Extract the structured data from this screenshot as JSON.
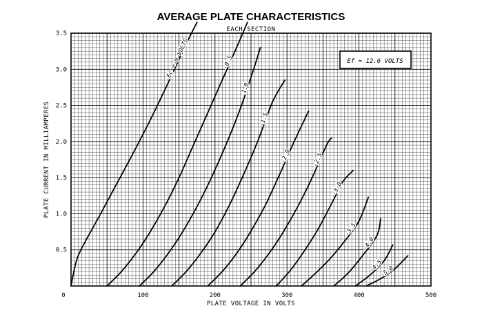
{
  "chart_data": {
    "type": "line",
    "title": "AVERAGE PLATE CHARACTERISTICS",
    "subtitle": "EACH SECTION",
    "xlabel": "PLATE VOLTAGE IN VOLTS",
    "ylabel": "PLATE CURRENT IN MILLIAMPERES",
    "xlim": [
      0,
      500
    ],
    "ylim": [
      0,
      3.5
    ],
    "grid": true,
    "x_ticks": [
      "0",
      "100",
      "200",
      "300",
      "400",
      "500"
    ],
    "y_ticks": [
      "0.5",
      "1.0",
      "1.5",
      "2.0",
      "2.5",
      "3.0",
      "3.5"
    ],
    "annotation": "Ef = 12.6 VOLTS",
    "series": [
      {
        "name": "Ec = 0 VOLTS",
        "label": "Ec = 0 VOLTS",
        "points": [
          [
            0,
            0
          ],
          [
            5,
            0.25
          ],
          [
            10,
            0.42
          ],
          [
            20,
            0.62
          ],
          [
            40,
            0.98
          ],
          [
            60,
            1.35
          ],
          [
            80,
            1.72
          ],
          [
            100,
            2.1
          ],
          [
            120,
            2.5
          ],
          [
            140,
            2.92
          ],
          [
            160,
            3.35
          ],
          [
            175,
            3.65
          ]
        ]
      },
      {
        "name": "-0.5",
        "label": "-0.5",
        "points": [
          [
            50,
            0
          ],
          [
            70,
            0.2
          ],
          [
            90,
            0.45
          ],
          [
            110,
            0.75
          ],
          [
            130,
            1.1
          ],
          [
            150,
            1.5
          ],
          [
            170,
            1.95
          ],
          [
            190,
            2.4
          ],
          [
            210,
            2.85
          ],
          [
            230,
            3.3
          ],
          [
            245,
            3.65
          ]
        ]
      },
      {
        "name": "-1.0",
        "label": "-1.0",
        "points": [
          [
            95,
            0
          ],
          [
            115,
            0.2
          ],
          [
            135,
            0.45
          ],
          [
            155,
            0.75
          ],
          [
            175,
            1.1
          ],
          [
            195,
            1.5
          ],
          [
            215,
            1.95
          ],
          [
            235,
            2.45
          ],
          [
            252,
            2.95
          ],
          [
            263,
            3.3
          ]
        ]
      },
      {
        "name": "-1.5",
        "label": "-1.5",
        "points": [
          [
            140,
            0
          ],
          [
            160,
            0.2
          ],
          [
            180,
            0.45
          ],
          [
            200,
            0.75
          ],
          [
            220,
            1.12
          ],
          [
            240,
            1.55
          ],
          [
            260,
            2.02
          ],
          [
            280,
            2.55
          ],
          [
            297,
            2.85
          ]
        ]
      },
      {
        "name": "-2.0",
        "label": "-2.0",
        "points": [
          [
            190,
            0
          ],
          [
            210,
            0.2
          ],
          [
            230,
            0.45
          ],
          [
            250,
            0.76
          ],
          [
            270,
            1.12
          ],
          [
            290,
            1.55
          ],
          [
            310,
            2.0
          ],
          [
            330,
            2.42
          ]
        ]
      },
      {
        "name": "-2.5",
        "label": "-2.5",
        "points": [
          [
            235,
            0
          ],
          [
            255,
            0.2
          ],
          [
            275,
            0.45
          ],
          [
            295,
            0.75
          ],
          [
            315,
            1.1
          ],
          [
            335,
            1.5
          ],
          [
            355,
            1.95
          ],
          [
            362,
            2.05
          ]
        ]
      },
      {
        "name": "-3.0",
        "label": "-3.0",
        "points": [
          [
            285,
            0
          ],
          [
            305,
            0.22
          ],
          [
            325,
            0.5
          ],
          [
            345,
            0.82
          ],
          [
            365,
            1.2
          ],
          [
            378,
            1.45
          ],
          [
            392,
            1.6
          ]
        ]
      },
      {
        "name": "-3.5",
        "label": "-3.5",
        "points": [
          [
            320,
            0
          ],
          [
            340,
            0.18
          ],
          [
            360,
            0.38
          ],
          [
            380,
            0.62
          ],
          [
            400,
            0.9
          ],
          [
            413,
            1.23
          ]
        ]
      },
      {
        "name": "-4.0",
        "label": "-4.0",
        "points": [
          [
            365,
            0
          ],
          [
            385,
            0.18
          ],
          [
            405,
            0.42
          ],
          [
            425,
            0.7
          ],
          [
            430,
            0.93
          ]
        ]
      },
      {
        "name": "-4.5",
        "label": "-4.5",
        "points": [
          [
            395,
            0
          ],
          [
            415,
            0.15
          ],
          [
            435,
            0.35
          ],
          [
            447,
            0.57
          ]
        ]
      },
      {
        "name": "-5.0",
        "label": "-5.0",
        "points": [
          [
            410,
            0
          ],
          [
            430,
            0.1
          ],
          [
            450,
            0.24
          ],
          [
            468,
            0.42
          ]
        ]
      }
    ]
  }
}
